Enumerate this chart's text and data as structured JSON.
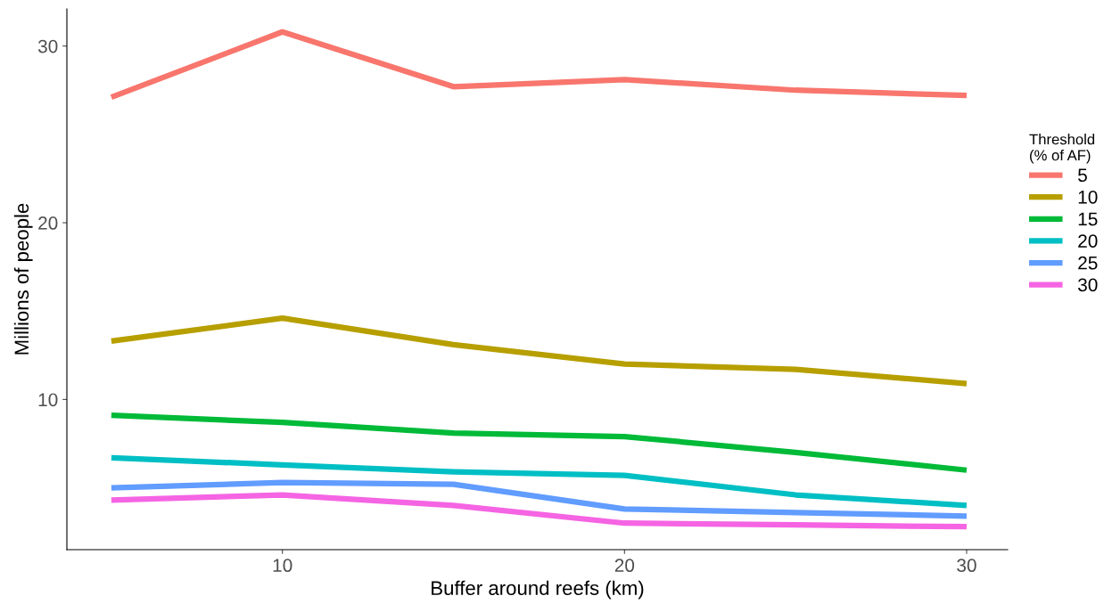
{
  "chart_data": {
    "type": "line",
    "xlabel": "Buffer around reefs (km)",
    "ylabel": "Millions of people",
    "legend_title": "Threshold\n(% of AF)",
    "legend": "right",
    "grid": false,
    "marker": "none",
    "line_style": "solid",
    "x": [
      5,
      10,
      15,
      20,
      25,
      30
    ],
    "xlim": [
      3.7,
      31.2
    ],
    "xticks": [
      10,
      20,
      30
    ],
    "ylim": [
      1.5,
      32.1
    ],
    "yticks": [
      10,
      20,
      30
    ],
    "series": [
      {
        "name": "5",
        "color": "#F8766D",
        "values": [
          27.1,
          30.8,
          27.7,
          28.1,
          27.5,
          27.2
        ]
      },
      {
        "name": "10",
        "color": "#B79F00",
        "values": [
          13.3,
          14.6,
          13.1,
          12.0,
          11.7,
          10.9
        ]
      },
      {
        "name": "15",
        "color": "#00BA38",
        "values": [
          9.1,
          8.7,
          8.1,
          7.9,
          7.0,
          6.0
        ]
      },
      {
        "name": "20",
        "color": "#00BFC4",
        "values": [
          6.7,
          6.3,
          5.9,
          5.7,
          4.6,
          4.0
        ]
      },
      {
        "name": "25",
        "color": "#619CFF",
        "values": [
          5.0,
          5.3,
          5.2,
          3.8,
          3.6,
          3.4
        ]
      },
      {
        "name": "30",
        "color": "#F564E3",
        "values": [
          4.3,
          4.6,
          4.0,
          3.0,
          2.9,
          2.8
        ]
      }
    ]
  }
}
